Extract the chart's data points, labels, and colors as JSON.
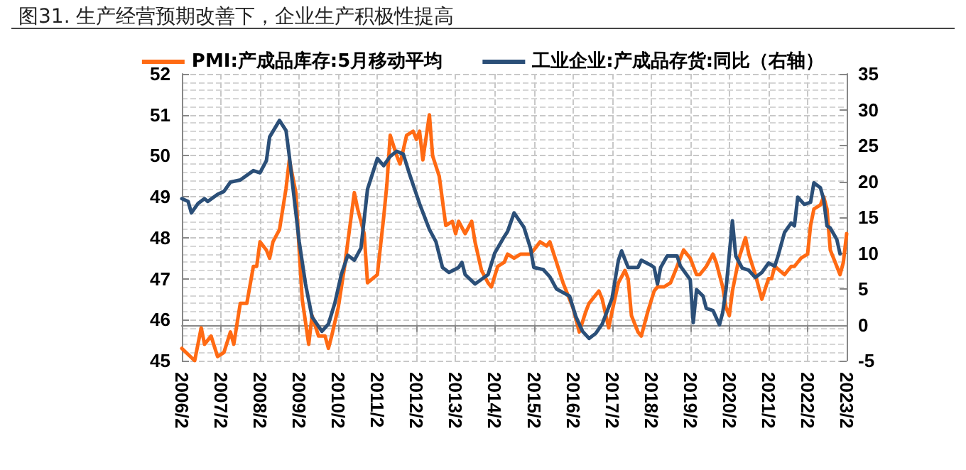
{
  "chart_data": {
    "type": "line",
    "title": "图31. 生产经营预期改善下，企业生产积极性提高",
    "xlim": [
      "2006-02",
      "2023-02"
    ],
    "xticks": [
      {
        "value": "2006-02",
        "label": "2006/2"
      },
      {
        "value": "2007-02",
        "label": "2007/2"
      },
      {
        "value": "2008-02",
        "label": "2008/2"
      },
      {
        "value": "2009-02",
        "label": "2009/2"
      },
      {
        "value": "2010-02",
        "label": "2010/2"
      },
      {
        "value": "2011-02",
        "label": "2011/2"
      },
      {
        "value": "2012-02",
        "label": "2012/2"
      },
      {
        "value": "2013-02",
        "label": "2013/2"
      },
      {
        "value": "2014-02",
        "label": "2014/2"
      },
      {
        "value": "2015-02",
        "label": "2015/2"
      },
      {
        "value": "2016-02",
        "label": "2016/2"
      },
      {
        "value": "2017-02",
        "label": "2017/2"
      },
      {
        "value": "2018-02",
        "label": "2018/2"
      },
      {
        "value": "2019-02",
        "label": "2019/2"
      },
      {
        "value": "2020-02",
        "label": "2020/2"
      },
      {
        "value": "2021-02",
        "label": "2021/2"
      },
      {
        "value": "2022-02",
        "label": "2022/2"
      },
      {
        "value": "2023-02",
        "label": "2023/2"
      }
    ],
    "ylim": [
      45,
      52
    ],
    "yticks": [
      45,
      46,
      47,
      48,
      49,
      50,
      51,
      52
    ],
    "y2lim": [
      -5,
      35
    ],
    "y2ticks": [
      -5,
      0,
      5,
      10,
      15,
      20,
      25,
      30,
      35
    ],
    "grid": true,
    "legend": "top",
    "marker": "none",
    "line_style": "solid",
    "series": [
      {
        "name": "PMI:产成品库存:5月移动平均",
        "color": "#ff6a13",
        "x": [
          "2006-02",
          "2006-06",
          "2006-08",
          "2006-09",
          "2006-11",
          "2007-01",
          "2007-03",
          "2007-05",
          "2007-06",
          "2007-08",
          "2007-10",
          "2007-12",
          "2008-01",
          "2008-02",
          "2008-04",
          "2008-05",
          "2008-06",
          "2008-08",
          "2008-10",
          "2008-11",
          "2009-01",
          "2009-02",
          "2009-03",
          "2009-05",
          "2009-06",
          "2009-08",
          "2009-10",
          "2009-11",
          "2009-12",
          "2010-02",
          "2010-04",
          "2010-07",
          "2010-08",
          "2010-10",
          "2010-11",
          "2011-02",
          "2011-04",
          "2011-05",
          "2011-06",
          "2011-08",
          "2011-09",
          "2011-11",
          "2012-01",
          "2012-02",
          "2012-03",
          "2012-04",
          "2012-06",
          "2012-07",
          "2012-09",
          "2012-11",
          "2013-01",
          "2013-02",
          "2013-03",
          "2013-05",
          "2013-07",
          "2013-08",
          "2013-10",
          "2013-12",
          "2014-01",
          "2014-03",
          "2014-05",
          "2014-06",
          "2014-08",
          "2014-10",
          "2015-01",
          "2015-02",
          "2015-04",
          "2015-06",
          "2015-07",
          "2015-09",
          "2015-11",
          "2016-02",
          "2016-04",
          "2016-06",
          "2016-07",
          "2016-10",
          "2016-11",
          "2017-01",
          "2017-02",
          "2017-04",
          "2017-06",
          "2017-07",
          "2017-08",
          "2017-10",
          "2017-11",
          "2018-01",
          "2018-03",
          "2018-04",
          "2018-06",
          "2018-08",
          "2018-09",
          "2018-12",
          "2019-02",
          "2019-04",
          "2019-05",
          "2019-07",
          "2019-09",
          "2019-10",
          "2019-12",
          "2020-01",
          "2020-02",
          "2020-03",
          "2020-05",
          "2020-07",
          "2020-08",
          "2020-10",
          "2020-12",
          "2021-02",
          "2021-03",
          "2021-04",
          "2021-07",
          "2021-09",
          "2021-10",
          "2021-12",
          "2022-02",
          "2022-03",
          "2022-04",
          "2022-06",
          "2022-07",
          "2022-08",
          "2022-09",
          "2022-11",
          "2022-12",
          "2023-01",
          "2023-02"
        ],
        "values": [
          45.3,
          45.0,
          45.8,
          45.4,
          45.6,
          45.1,
          45.2,
          45.7,
          45.4,
          46.4,
          46.4,
          47.3,
          47.3,
          47.9,
          47.7,
          47.5,
          47.9,
          48.2,
          49.2,
          49.9,
          49.1,
          47.7,
          46.5,
          45.4,
          46.1,
          45.6,
          45.6,
          45.3,
          45.6,
          46.3,
          47.3,
          49.1,
          48.7,
          48.1,
          46.9,
          47.1,
          48.5,
          49.3,
          50.5,
          50.0,
          49.8,
          50.5,
          50.6,
          50.4,
          50.6,
          49.9,
          51.0,
          50.0,
          49.5,
          48.3,
          48.4,
          48.1,
          48.4,
          48.1,
          48.4,
          47.9,
          47.2,
          46.9,
          46.8,
          47.3,
          47.4,
          47.6,
          47.5,
          47.6,
          47.6,
          47.7,
          47.9,
          47.8,
          47.9,
          47.4,
          46.9,
          46.3,
          45.7,
          46.2,
          46.4,
          46.7,
          46.5,
          45.8,
          46.2,
          46.9,
          47.2,
          47.0,
          46.1,
          45.7,
          45.6,
          46.2,
          46.7,
          46.8,
          46.8,
          46.9,
          47.1,
          47.7,
          47.5,
          47.1,
          47.1,
          47.3,
          47.6,
          47.4,
          46.8,
          46.3,
          46.1,
          46.7,
          47.5,
          48.0,
          47.6,
          47.1,
          46.5,
          47.0,
          47.0,
          47.3,
          47.1,
          47.3,
          47.3,
          47.5,
          47.6,
          48.3,
          48.7,
          48.8,
          49.0,
          48.7,
          47.7,
          47.3,
          47.1,
          47.4,
          48.1
        ]
      },
      {
        "name": "工业企业:产成品存货:同比（右轴）",
        "color": "#2b4f78",
        "axis": "y2",
        "x": [
          "2006-02",
          "2006-04",
          "2006-05",
          "2006-07",
          "2006-09",
          "2006-10",
          "2007-01",
          "2007-03",
          "2007-05",
          "2007-08",
          "2007-12",
          "2008-02",
          "2008-04",
          "2008-05",
          "2008-08",
          "2008-10",
          "2008-11",
          "2009-02",
          "2009-04",
          "2009-06",
          "2009-09",
          "2009-11",
          "2010-01",
          "2010-03",
          "2010-05",
          "2010-07",
          "2010-09",
          "2010-11",
          "2011-02",
          "2011-04",
          "2011-06",
          "2011-08",
          "2011-10",
          "2011-12",
          "2012-03",
          "2012-06",
          "2012-08",
          "2012-10",
          "2012-12",
          "2013-03",
          "2013-04",
          "2013-05",
          "2013-08",
          "2013-12",
          "2014-02",
          "2014-05",
          "2014-06",
          "2014-08",
          "2014-11",
          "2015-01",
          "2015-02",
          "2015-05",
          "2015-07",
          "2015-09",
          "2016-01",
          "2016-03",
          "2016-05",
          "2016-07",
          "2016-09",
          "2016-11",
          "2017-02",
          "2017-04",
          "2017-05",
          "2017-07",
          "2017-10",
          "2017-11",
          "2018-02",
          "2018-03",
          "2018-04",
          "2018-05",
          "2018-07",
          "2018-10",
          "2018-11",
          "2019-02",
          "2019-03",
          "2019-04",
          "2019-06",
          "2019-07",
          "2019-09",
          "2019-11",
          "2019-12",
          "2020-01",
          "2020-03",
          "2020-04",
          "2020-06",
          "2020-08",
          "2020-10",
          "2020-12",
          "2021-02",
          "2021-04",
          "2021-05",
          "2021-07",
          "2021-09",
          "2021-10",
          "2021-11",
          "2022-01",
          "2022-03",
          "2022-04",
          "2022-06",
          "2022-07",
          "2022-08",
          "2022-09",
          "2022-11",
          "2022-12"
        ],
        "values": [
          17.6,
          17.2,
          15.6,
          16.9,
          17.6,
          17.2,
          18.2,
          18.6,
          19.9,
          20.2,
          21.5,
          21.2,
          22.9,
          26.2,
          28.5,
          27.1,
          23.5,
          11.6,
          5.7,
          1.1,
          -0.9,
          0.1,
          3.1,
          7.0,
          9.7,
          9.0,
          10.7,
          18.9,
          23.2,
          22.2,
          23.5,
          24.2,
          23.8,
          20.9,
          16.9,
          13.3,
          11.6,
          8.0,
          7.3,
          8.0,
          8.7,
          7.0,
          5.7,
          7.0,
          10.0,
          12.3,
          13.0,
          15.6,
          13.6,
          10.7,
          8.0,
          7.7,
          6.7,
          5.0,
          4.0,
          1.1,
          -0.9,
          -1.9,
          -1.2,
          0.1,
          3.7,
          9.0,
          10.3,
          8.0,
          8.0,
          9.0,
          8.3,
          8.0,
          5.7,
          8.0,
          9.6,
          9.6,
          8.2,
          6.3,
          0.3,
          4.9,
          4.0,
          2.3,
          2.0,
          0.0,
          1.7,
          4.9,
          14.5,
          9.6,
          7.9,
          7.6,
          6.6,
          7.3,
          8.6,
          8.2,
          9.6,
          12.9,
          14.2,
          13.8,
          17.8,
          16.8,
          17.1,
          19.8,
          19.1,
          17.5,
          13.8,
          13.5,
          11.9,
          9.9
        ]
      }
    ]
  }
}
